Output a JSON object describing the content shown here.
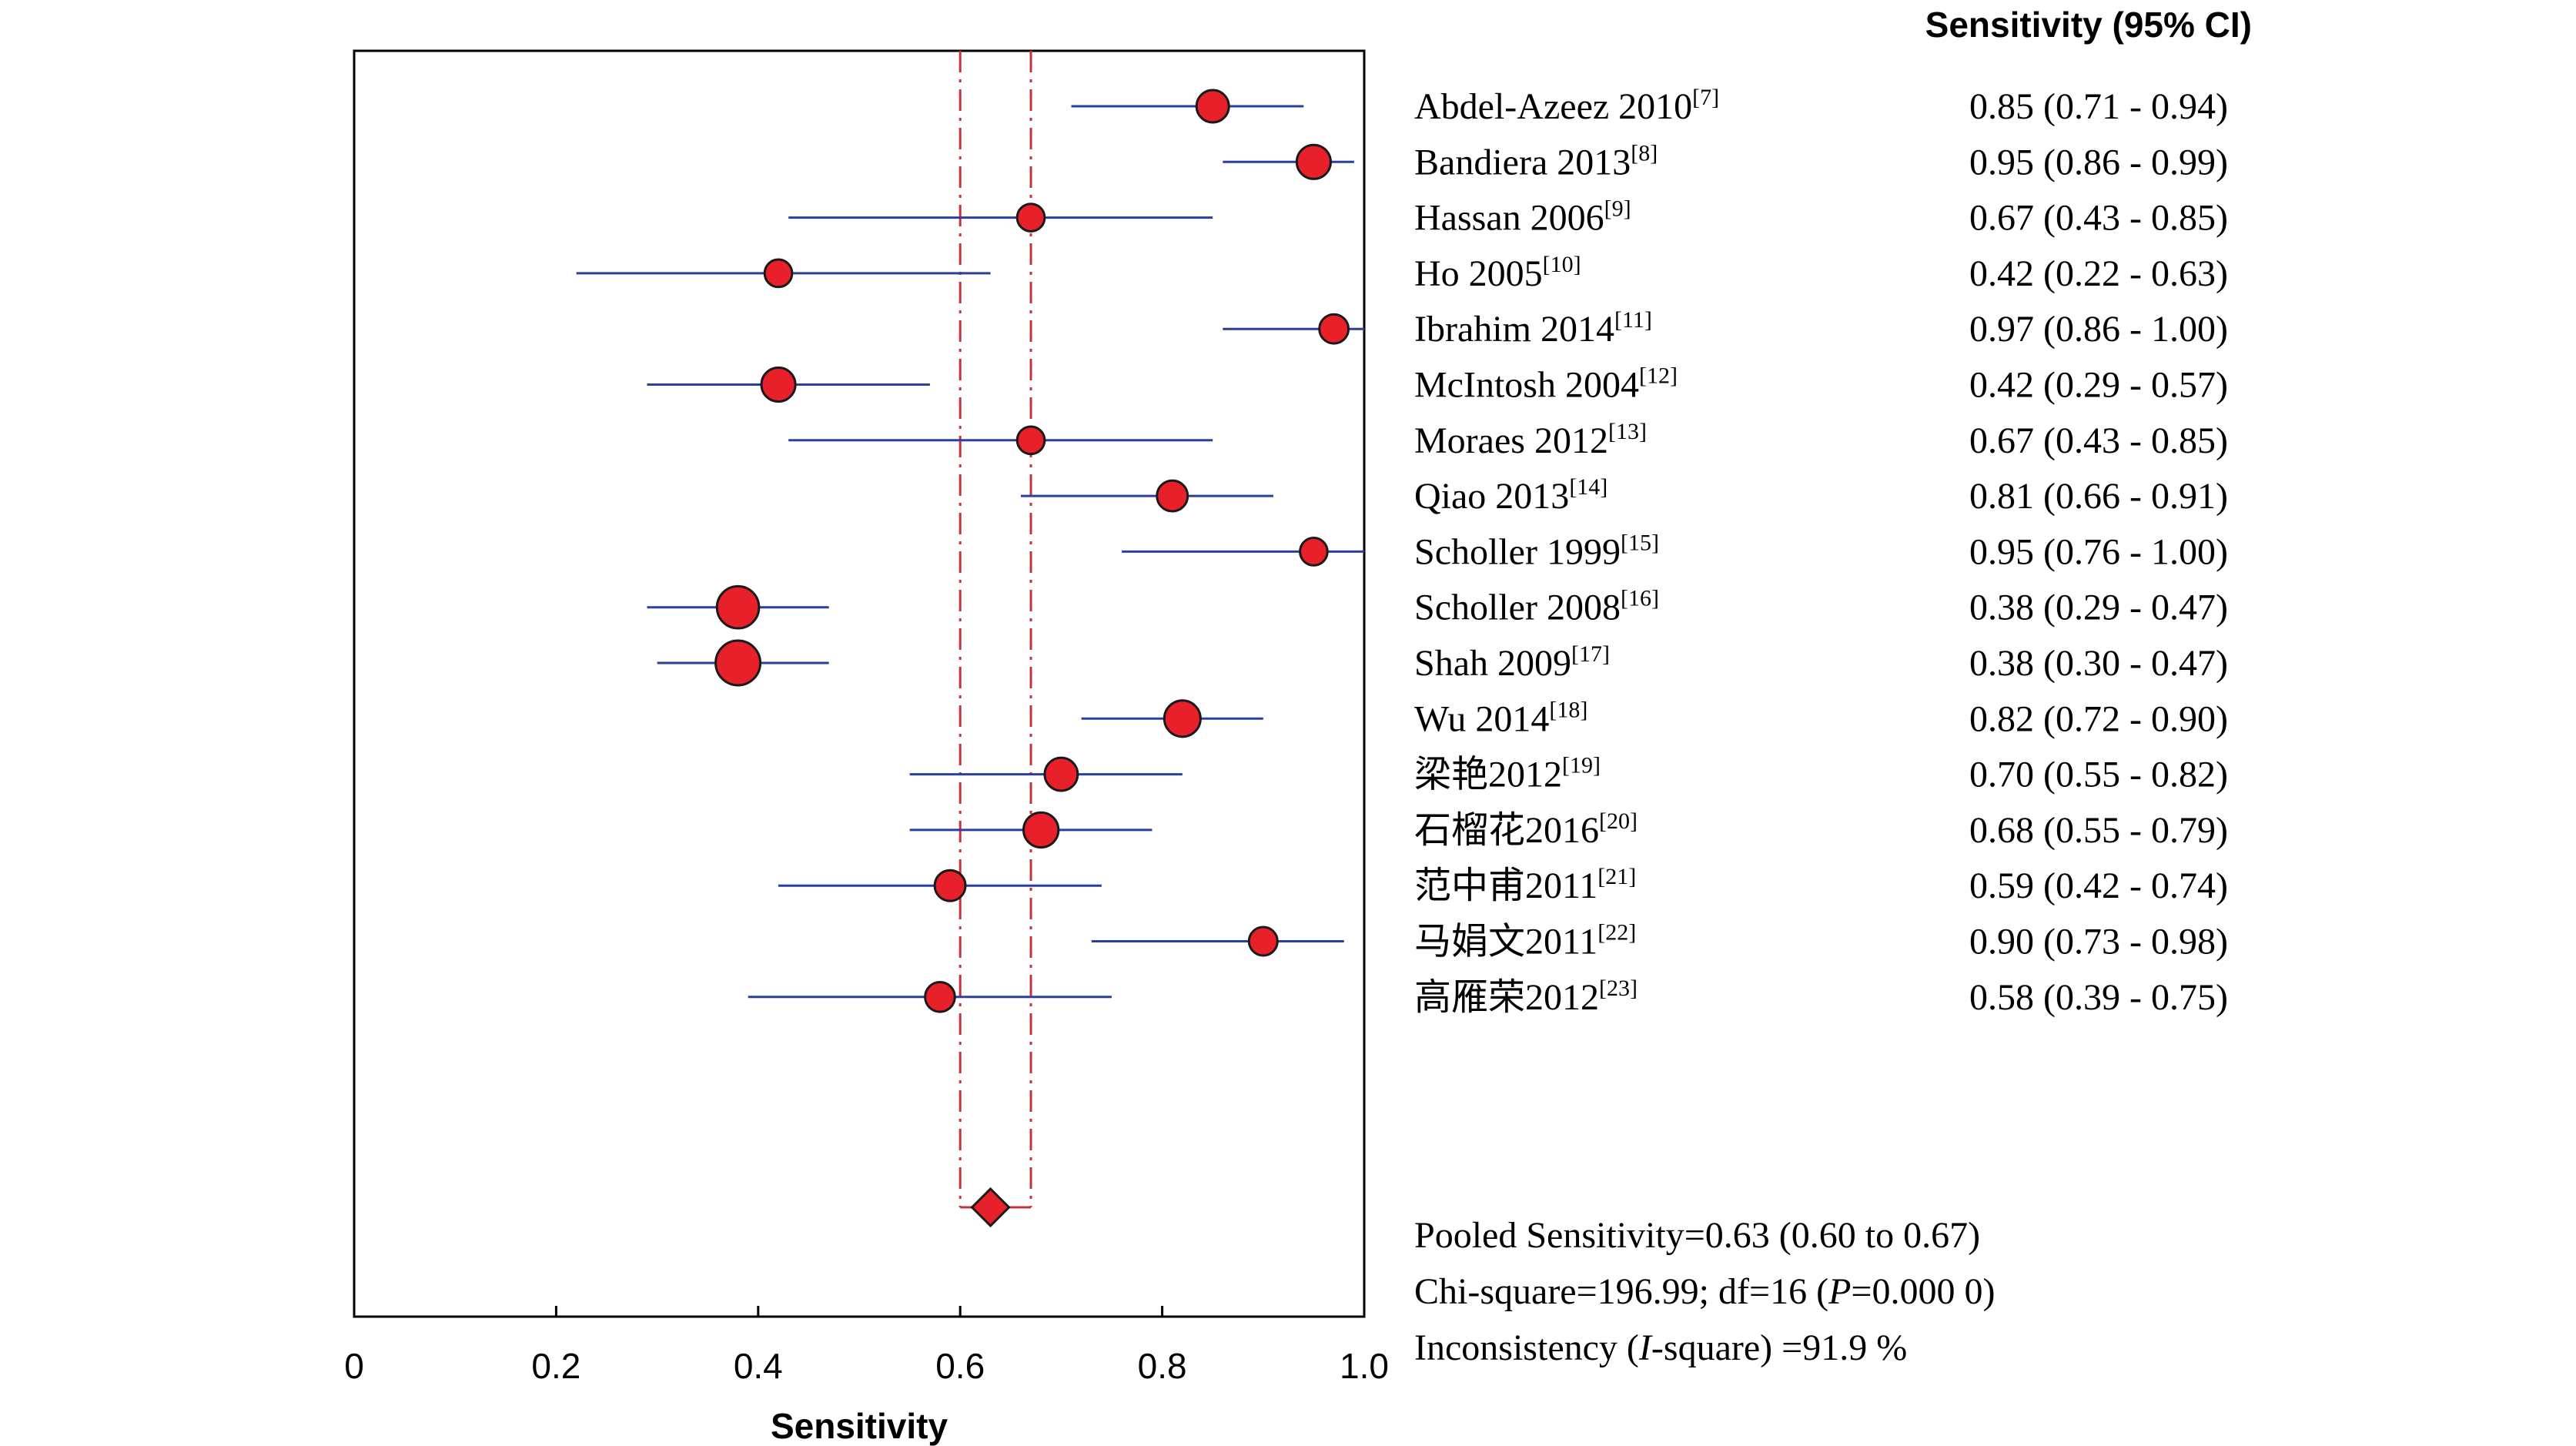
{
  "chart_data": {
    "type": "scatter",
    "xlabel": "Sensitivity",
    "xlim": [
      0,
      1
    ],
    "xticks": [
      "0",
      "0.2",
      "0.4",
      "0.6",
      "0.8",
      "1.0"
    ],
    "xtick_values": [
      0,
      0.2,
      0.4,
      0.6,
      0.8,
      1.0
    ],
    "column_header": "Sensitivity (95% CI)",
    "studies": [
      {
        "name": "Abdel-Azeez 2010",
        "ref": "[7]",
        "est": 0.85,
        "lo": 0.71,
        "hi": 0.94,
        "ci_text": "0.85 (0.71 - 0.94)",
        "weight": 1.0
      },
      {
        "name": "Bandiera 2013",
        "ref": "[8]",
        "est": 0.95,
        "lo": 0.86,
        "hi": 0.99,
        "ci_text": "0.95 (0.86 - 0.99)",
        "weight": 1.05
      },
      {
        "name": "Hassan 2006",
        "ref": "[9]",
        "est": 0.67,
        "lo": 0.43,
        "hi": 0.85,
        "ci_text": "0.67 (0.43 - 0.85)",
        "weight": 0.85
      },
      {
        "name": "Ho 2005",
        "ref": "[10]",
        "est": 0.42,
        "lo": 0.22,
        "hi": 0.63,
        "ci_text": "0.42 (0.22 - 0.63)",
        "weight": 0.85
      },
      {
        "name": "Ibrahim 2014",
        "ref": "[11]",
        "est": 0.97,
        "lo": 0.86,
        "hi": 1.0,
        "ci_text": "0.97 (0.86 - 1.00)",
        "weight": 0.9
      },
      {
        "name": "McIntosh 2004",
        "ref": "[12]",
        "est": 0.42,
        "lo": 0.29,
        "hi": 0.57,
        "ci_text": "0.42 (0.29 - 0.57)",
        "weight": 1.05
      },
      {
        "name": "Moraes 2012",
        "ref": "[13]",
        "est": 0.67,
        "lo": 0.43,
        "hi": 0.85,
        "ci_text": "0.67 (0.43 - 0.85)",
        "weight": 0.85
      },
      {
        "name": "Qiao 2013",
        "ref": "[14]",
        "est": 0.81,
        "lo": 0.66,
        "hi": 0.91,
        "ci_text": "0.81 (0.66 - 0.91)",
        "weight": 0.95
      },
      {
        "name": "Scholler 1999",
        "ref": "[15]",
        "est": 0.95,
        "lo": 0.76,
        "hi": 1.0,
        "ci_text": "0.95 (0.76 - 1.00)",
        "weight": 0.85
      },
      {
        "name": "Scholler 2008",
        "ref": "[16]",
        "est": 0.38,
        "lo": 0.29,
        "hi": 0.47,
        "ci_text": "0.38 (0.29 - 0.47)",
        "weight": 1.3
      },
      {
        "name": "Shah 2009",
        "ref": "[17]",
        "est": 0.38,
        "lo": 0.3,
        "hi": 0.47,
        "ci_text": "0.38 (0.30 - 0.47)",
        "weight": 1.38
      },
      {
        "name": "Wu 2014",
        "ref": "[18]",
        "est": 0.82,
        "lo": 0.72,
        "hi": 0.9,
        "ci_text": "0.82 (0.72 - 0.90)",
        "weight": 1.12
      },
      {
        "name": "梁艳2012",
        "ref": "[19]",
        "est": 0.7,
        "lo": 0.55,
        "hi": 0.82,
        "ci_text": "0.70 (0.55 - 0.82)",
        "weight": 1.02
      },
      {
        "name": "石榴花2016",
        "ref": "[20]",
        "est": 0.68,
        "lo": 0.55,
        "hi": 0.79,
        "ci_text": "0.68 (0.55 - 0.79)",
        "weight": 1.08
      },
      {
        "name": "范中甫2011",
        "ref": "[21]",
        "est": 0.59,
        "lo": 0.42,
        "hi": 0.74,
        "ci_text": "0.59 (0.42 - 0.74)",
        "weight": 0.95
      },
      {
        "name": "马娟文2011",
        "ref": "[22]",
        "est": 0.9,
        "lo": 0.73,
        "hi": 0.98,
        "ci_text": "0.90 (0.73 - 0.98)",
        "weight": 0.88
      },
      {
        "name": "高雁荣2012",
        "ref": "[23]",
        "est": 0.58,
        "lo": 0.39,
        "hi": 0.75,
        "ci_text": "0.58 (0.39 - 0.75)",
        "weight": 0.92
      }
    ],
    "pooled": {
      "est": 0.63,
      "lo": 0.6,
      "hi": 0.67
    },
    "summary": {
      "line1": "Pooled Sensitivity=0.63 (0.60 to 0.67)",
      "line2_prefix": "Chi-square=196.99; df=16 (",
      "line2_italic": "P",
      "line2_suffix": "=0.000 0)",
      "line3_prefix": "Inconsistency (",
      "line3_italic": "I",
      "line3_suffix": "-square) =91.9 %"
    },
    "colors": {
      "ci_line": "#2b3f9e",
      "marker_fill": "#e8202a",
      "marker_stroke": "#1a1a1a",
      "pooled_line": "#c8323c",
      "axis": "#000000"
    },
    "grid": false,
    "legend": "none"
  }
}
